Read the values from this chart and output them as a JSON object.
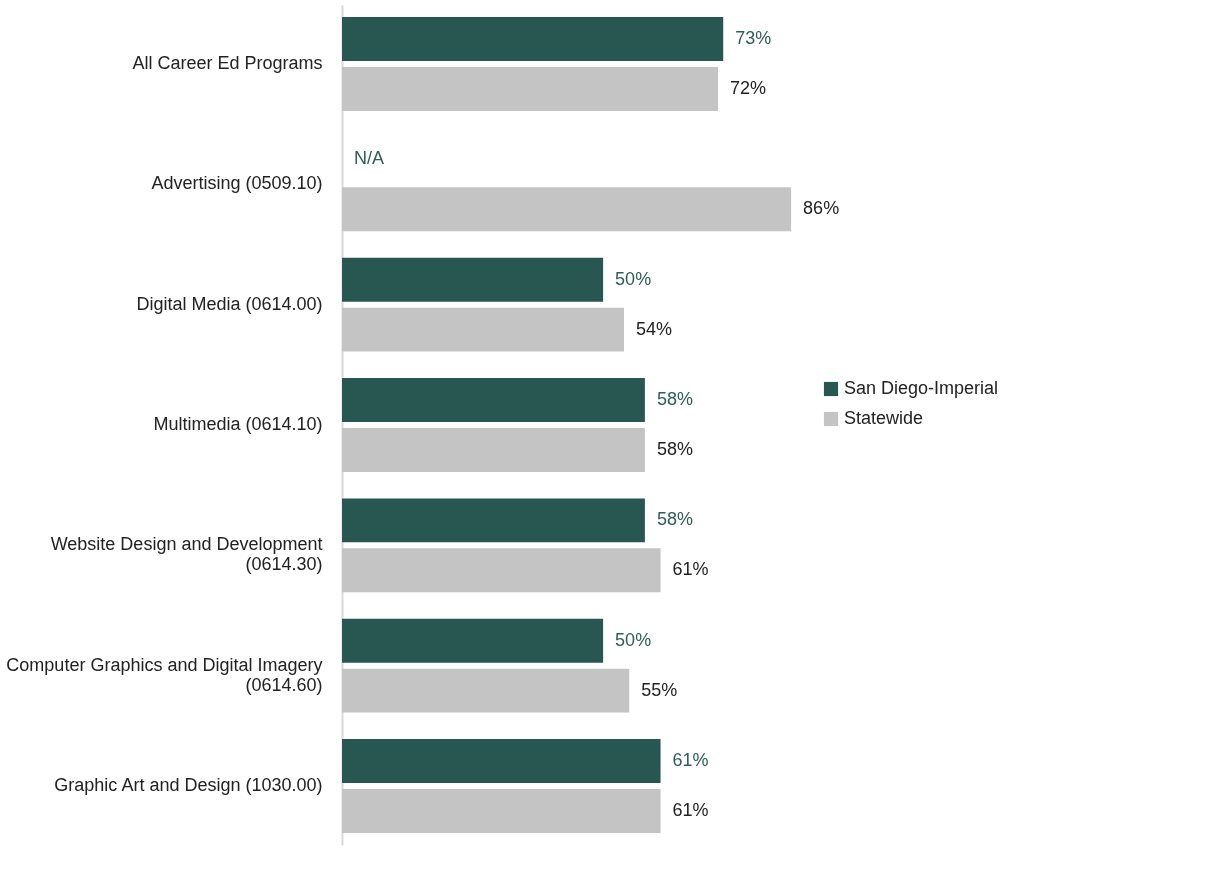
{
  "chart_data": {
    "type": "bar",
    "orientation": "horizontal",
    "categories": [
      "All Career Ed Programs",
      "Advertising (0509.10)",
      "Digital Media (0614.00)",
      "Multimedia (0614.10)",
      "Website Design and Development (0614.30)",
      "Computer Graphics and Digital Imagery (0614.60)",
      "Graphic Art and Design (1030.00)"
    ],
    "series": [
      {
        "name": "San Diego-Imperial",
        "color": "#285650",
        "values": [
          73,
          null,
          50,
          58,
          58,
          50,
          61
        ],
        "value_labels": [
          "73%",
          "N/A",
          "50%",
          "58%",
          "58%",
          "50%",
          "61%"
        ]
      },
      {
        "name": "Statewide",
        "color": "#c4c4c4",
        "values": [
          72,
          86,
          54,
          58,
          61,
          55,
          61
        ],
        "value_labels": [
          "72%",
          "86%",
          "54%",
          "58%",
          "61%",
          "55%",
          "61%"
        ]
      }
    ],
    "tick_labels": "y",
    "legend": "right"
  }
}
